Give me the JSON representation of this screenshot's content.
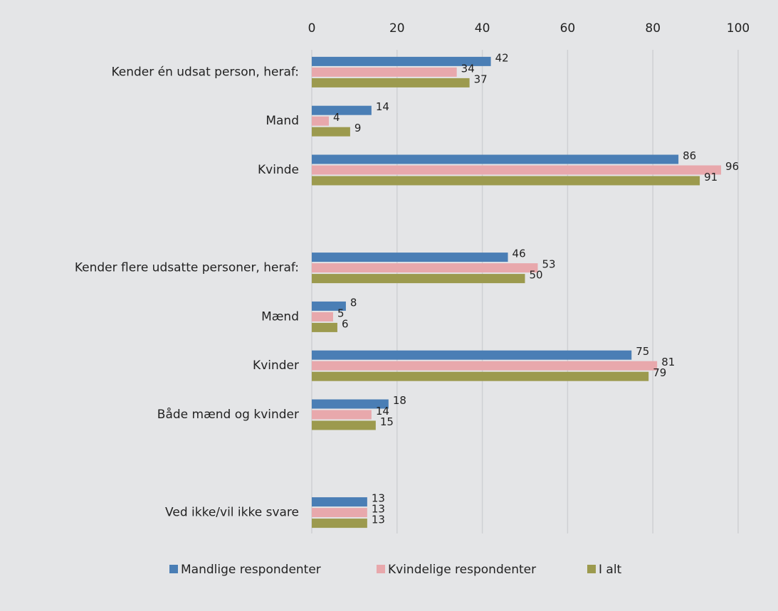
{
  "chart_data": {
    "type": "bar",
    "orientation": "horizontal",
    "categories": [
      "Kender én udsat person, heraf:",
      "Mand",
      "Kvinde",
      null,
      "Kender flere udsatte personer, heraf:",
      "Mænd",
      "Kvinder",
      "Både mænd og kvinder",
      null,
      "Ved ikke/vil ikke svare"
    ],
    "series": [
      {
        "name": "Mandlige respondenter",
        "color": "#4a7eb5",
        "values": [
          42,
          14,
          86,
          null,
          46,
          8,
          75,
          18,
          null,
          13
        ]
      },
      {
        "name": "Kvindelige respondenter",
        "color": "#e8a8ac",
        "values": [
          34,
          4,
          96,
          null,
          53,
          5,
          81,
          14,
          null,
          13
        ]
      },
      {
        "name": "I alt",
        "color": "#9c9a4e",
        "values": [
          37,
          9,
          91,
          null,
          50,
          6,
          79,
          15,
          null,
          13
        ]
      }
    ],
    "xlim": [
      0,
      100
    ],
    "xticks": [
      0,
      20,
      40,
      60,
      80,
      100
    ],
    "grid": true,
    "legend": "bottom"
  }
}
